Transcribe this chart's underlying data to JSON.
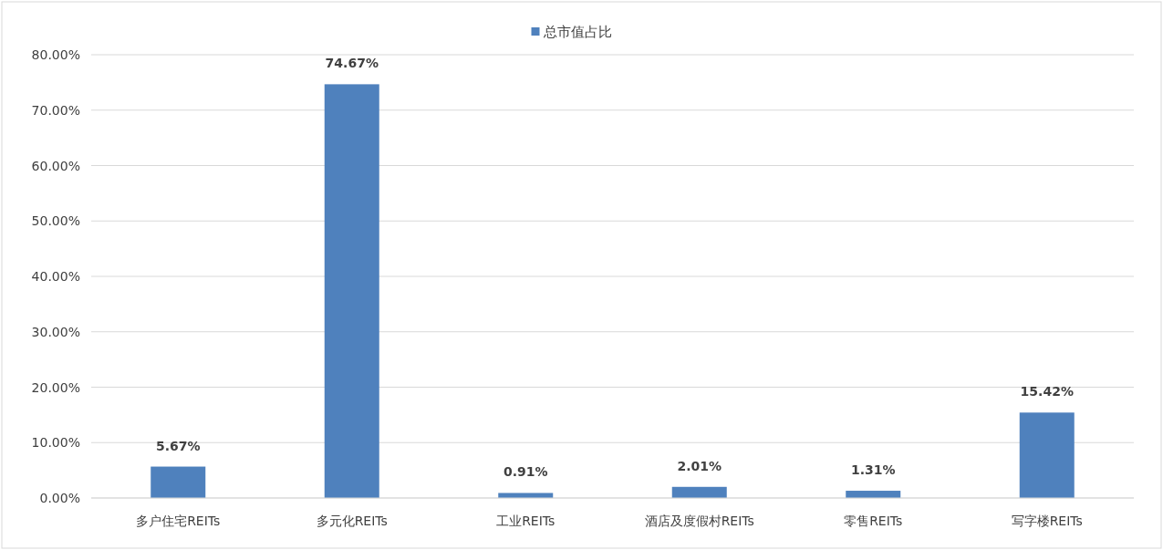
{
  "chart_data": {
    "type": "bar",
    "categories": [
      "多户住宅REITs",
      "多元化REITs",
      "工业REITs",
      "酒店及度假村REITs",
      "零售REITs",
      "写字楼REITs"
    ],
    "series": [
      {
        "name": "总市值占比",
        "color": "#4f81bd",
        "values": [
          5.67,
          74.67,
          0.91,
          2.01,
          1.31,
          15.42
        ],
        "value_labels": [
          "5.67%",
          "74.67%",
          "0.91%",
          "2.01%",
          "1.31%",
          "15.42%"
        ]
      }
    ],
    "ylim": [
      0,
      80
    ],
    "yticks": [
      {
        "value": 0,
        "label": "0.00%"
      },
      {
        "value": 10,
        "label": "10.00%"
      },
      {
        "value": 20,
        "label": "20.00%"
      },
      {
        "value": 30,
        "label": "30.00%"
      },
      {
        "value": 40,
        "label": "40.00%"
      },
      {
        "value": 50,
        "label": "50.00%"
      },
      {
        "value": 60,
        "label": "60.00%"
      },
      {
        "value": 70,
        "label": "70.00%"
      },
      {
        "value": 80,
        "label": "80.00%"
      }
    ],
    "grid": "y",
    "legend": "top"
  }
}
